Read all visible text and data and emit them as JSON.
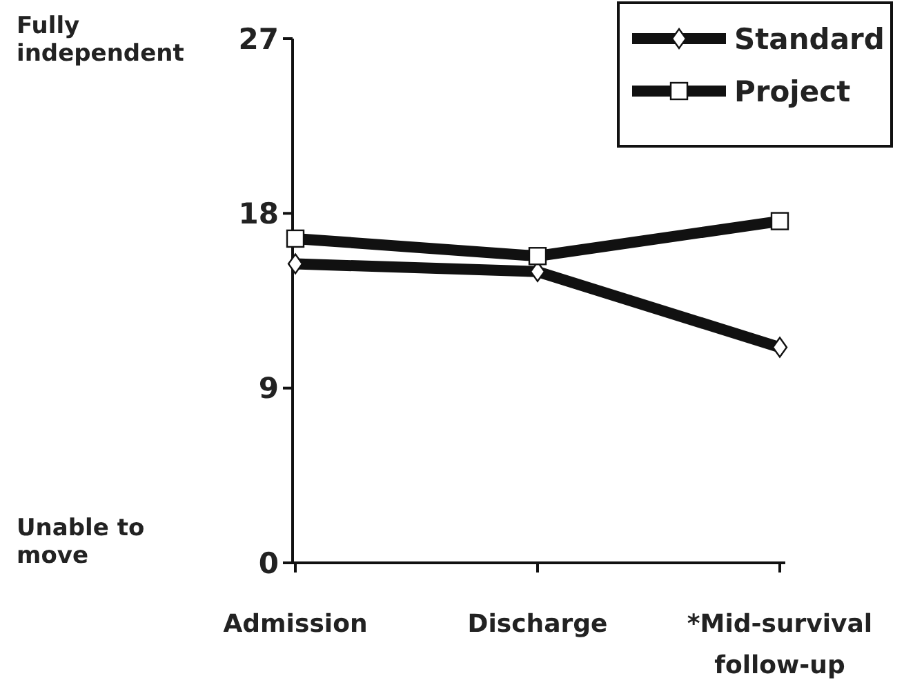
{
  "chart_data": {
    "type": "line",
    "categories": [
      "Admission",
      "Discharge",
      "*Mid-survival follow-up"
    ],
    "series": [
      {
        "name": "Standard",
        "color": "#111111",
        "marker": "diamond",
        "values": [
          15.4,
          15.0,
          11.1
        ]
      },
      {
        "name": "Project",
        "color": "#111111",
        "marker": "square",
        "values": [
          16.7,
          15.8,
          17.6
        ]
      }
    ],
    "ylim": [
      0,
      27
    ],
    "yticks": [
      0,
      9,
      18,
      27
    ],
    "grid": false,
    "legend": "top right",
    "line_style": "solid",
    "annotations": [
      "Fully independent",
      "Unable to move"
    ]
  }
}
